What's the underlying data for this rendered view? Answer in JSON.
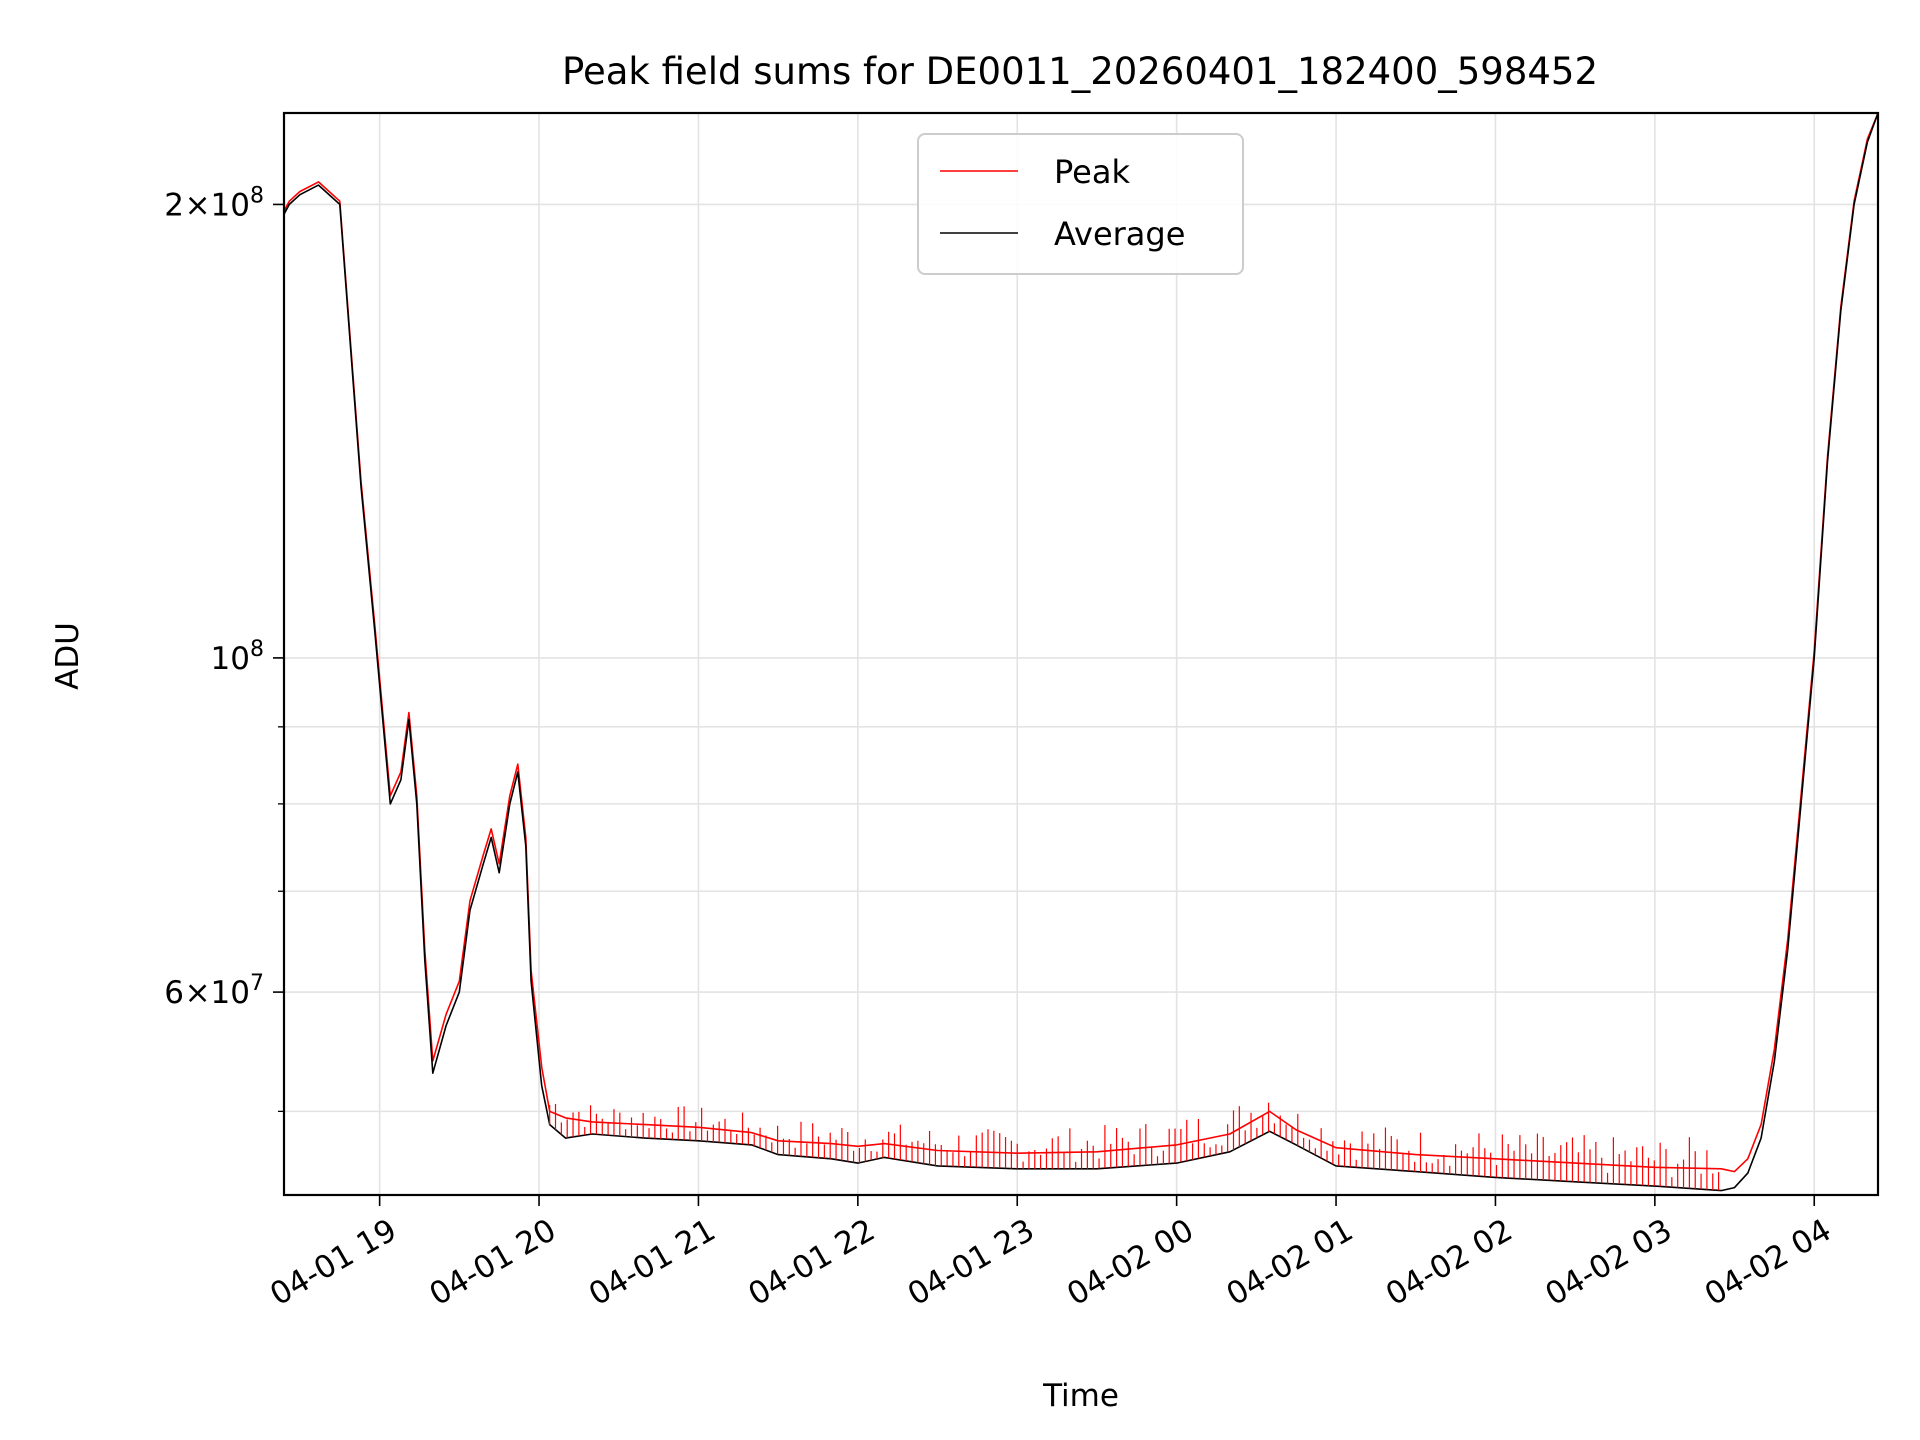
{
  "chart_data": {
    "type": "line",
    "title": "Peak field sums for DE0011_20260401_182400_598452",
    "xlabel": "Time",
    "ylabel": "ADU",
    "yscale": "log",
    "ylim": [
      44000000,
      230000000
    ],
    "xlim": [
      "04-01 18:24",
      "04-02 04:24"
    ],
    "grid": true,
    "legend_position": "top-center",
    "x_ticks": [
      "04-01 19",
      "04-01 20",
      "04-01 21",
      "04-01 22",
      "04-01 23",
      "04-02 00",
      "04-02 01",
      "04-02 02",
      "04-02 03",
      "04-02 04"
    ],
    "y_ticks": [
      {
        "value": 200000000,
        "mantissa": "2",
        "exponent": "8"
      },
      {
        "value": 100000000,
        "mantissa": "",
        "exponent": "8"
      },
      {
        "value": 60000000,
        "mantissa": "6",
        "exponent": "7"
      }
    ],
    "y_minor_ticks": [
      50000000,
      70000000,
      80000000,
      90000000
    ],
    "colors": {
      "peak": "#ff0000",
      "average": "#000000"
    },
    "series": [
      {
        "name": "Average",
        "color": "#000000",
        "x": [
          "04-01 18:24",
          "04-01 18:26",
          "04-01 18:30",
          "04-01 18:37",
          "04-01 18:45",
          "04-01 18:48",
          "04-01 18:53",
          "04-01 18:58",
          "04-01 19:00",
          "04-01 19:04",
          "04-01 19:08",
          "04-01 19:11",
          "04-01 19:14",
          "04-01 19:17",
          "04-01 19:20",
          "04-01 19:25",
          "04-01 19:30",
          "04-01 19:34",
          "04-01 19:39",
          "04-01 19:42",
          "04-01 19:45",
          "04-01 19:49",
          "04-01 19:52",
          "04-01 19:55",
          "04-01 19:57",
          "04-01 20:01",
          "04-01 20:04",
          "04-01 20:10",
          "04-01 20:20",
          "04-01 20:40",
          "04-01 21:00",
          "04-01 21:20",
          "04-01 21:30",
          "04-01 21:50",
          "04-01 22:00",
          "04-01 22:10",
          "04-01 22:30",
          "04-01 23:00",
          "04-01 23:30",
          "04-02 00:00",
          "04-02 00:20",
          "04-02 00:35",
          "04-02 00:45",
          "04-02 01:00",
          "04-02 01:30",
          "04-02 02:00",
          "04-02 02:30",
          "04-02 03:00",
          "04-02 03:25",
          "04-02 03:30",
          "04-02 03:35",
          "04-02 03:40",
          "04-02 03:45",
          "04-02 03:50",
          "04-02 03:55",
          "04-02 04:00",
          "04-02 04:05",
          "04-02 04:10",
          "04-02 04:15",
          "04-02 04:20",
          "04-02 04:24"
        ],
        "values": [
          197000000,
          200000000,
          203000000,
          206000000,
          200000000,
          170000000,
          130000000,
          105000000,
          96000000,
          80000000,
          83000000,
          91000000,
          80000000,
          63000000,
          53000000,
          57000000,
          60000000,
          68000000,
          73000000,
          76000000,
          72000000,
          80000000,
          84000000,
          75000000,
          61000000,
          52000000,
          49000000,
          48000000,
          48300000,
          48000000,
          47800000,
          47500000,
          46800000,
          46500000,
          46200000,
          46600000,
          46000000,
          45800000,
          45800000,
          46200000,
          47000000,
          48500000,
          47500000,
          46000000,
          45600000,
          45200000,
          44900000,
          44600000,
          44300000,
          44500000,
          45500000,
          48000000,
          54000000,
          64000000,
          80000000,
          100000000,
          135000000,
          170000000,
          200000000,
          220000000,
          230000000
        ]
      },
      {
        "name": "Peak",
        "color": "#ff0000",
        "x": [
          "04-01 18:24",
          "04-01 18:26",
          "04-01 18:30",
          "04-01 18:37",
          "04-01 18:45",
          "04-01 18:48",
          "04-01 18:53",
          "04-01 18:58",
          "04-01 19:00",
          "04-01 19:04",
          "04-01 19:08",
          "04-01 19:11",
          "04-01 19:14",
          "04-01 19:17",
          "04-01 19:20",
          "04-01 19:25",
          "04-01 19:30",
          "04-01 19:34",
          "04-01 19:39",
          "04-01 19:42",
          "04-01 19:45",
          "04-01 19:49",
          "04-01 19:52",
          "04-01 19:55",
          "04-01 19:57",
          "04-01 20:01",
          "04-01 20:04",
          "04-01 20:10",
          "04-01 20:20",
          "04-01 20:40",
          "04-01 21:00",
          "04-01 21:20",
          "04-01 21:30",
          "04-01 21:50",
          "04-01 22:00",
          "04-01 22:10",
          "04-01 22:30",
          "04-01 23:00",
          "04-01 23:30",
          "04-02 00:00",
          "04-02 00:20",
          "04-02 00:35",
          "04-02 00:45",
          "04-02 01:00",
          "04-02 01:30",
          "04-02 02:00",
          "04-02 02:30",
          "04-02 03:00",
          "04-02 03:25",
          "04-02 03:30",
          "04-02 03:35",
          "04-02 03:40",
          "04-02 03:45",
          "04-02 03:50",
          "04-02 03:55",
          "04-02 04:00",
          "04-02 04:05",
          "04-02 04:10",
          "04-02 04:15",
          "04-02 04:20",
          "04-02 04:24"
        ],
        "values": [
          198000000,
          201000000,
          204000000,
          207000000,
          201000000,
          171000000,
          131000000,
          106000000,
          97000000,
          81000000,
          84000000,
          92000000,
          81000000,
          64000000,
          54000000,
          58000000,
          61000000,
          69000000,
          74000000,
          77000000,
          73000000,
          81000000,
          85000000,
          76000000,
          62000000,
          53500000,
          50000000,
          49500000,
          49200000,
          49000000,
          48800000,
          48400000,
          47800000,
          47600000,
          47400000,
          47600000,
          47100000,
          46900000,
          47000000,
          47500000,
          48300000,
          50000000,
          48600000,
          47300000,
          46800000,
          46500000,
          46200000,
          45900000,
          45800000,
          45600000,
          46500000,
          49000000,
          55000000,
          65000000,
          81000000,
          101000000,
          136000000,
          171000000,
          201000000,
          221000000,
          230000000
        ]
      }
    ]
  }
}
